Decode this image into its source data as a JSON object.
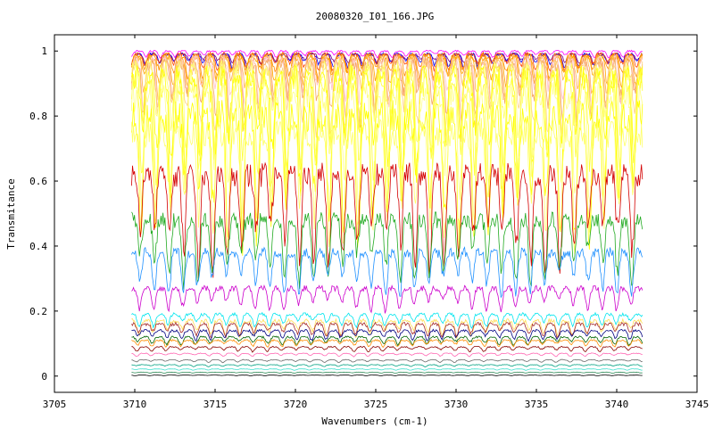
{
  "chart_data": {
    "type": "line",
    "title": "20080320_I01_166.JPG",
    "xlabel": "Wavenumbers (cm-1)",
    "ylabel": "Transmitance",
    "xlim": [
      3705,
      3745
    ],
    "ylim": [
      -0.05,
      1.05
    ],
    "x_ticks": [
      "3705",
      "3710",
      "3715",
      "3720",
      "3725",
      "3730",
      "3735",
      "3740",
      "3745"
    ],
    "y_ticks": [
      "0",
      "0.2",
      "0.4",
      "0.6",
      "0.8",
      "1"
    ],
    "x_range_data": [
      3709.8,
      3741.6
    ],
    "line_period_cm1": 0.9,
    "grid": false,
    "legend": "none",
    "series": [
      {
        "color": "#ff00ff",
        "baseline": 1.0,
        "amplitude": 0.02
      },
      {
        "color": "#800080",
        "baseline": 0.99,
        "amplitude": 0.03
      },
      {
        "color": "#0000ff",
        "baseline": 0.99,
        "amplitude": 0.04
      },
      {
        "color": "#ff4500",
        "baseline": 0.99,
        "amplitude": 0.05
      },
      {
        "color": "#ff8c00",
        "baseline": 0.985,
        "amplitude": 0.07
      },
      {
        "color": "#ffa500",
        "baseline": 0.98,
        "amplitude": 0.09
      },
      {
        "color": "#ffb347",
        "baseline": 0.975,
        "amplitude": 0.12
      },
      {
        "color": "#ffc0cb",
        "baseline": 0.97,
        "amplitude": 0.15
      },
      {
        "color": "#f4a460",
        "baseline": 0.96,
        "amplitude": 0.18
      },
      {
        "color": "#ffd27f",
        "baseline": 0.95,
        "amplitude": 0.22
      },
      {
        "color": "#ffff66",
        "baseline": 0.94,
        "amplitude": 0.26
      },
      {
        "color": "#ffff00",
        "baseline": 0.92,
        "amplitude": 0.3
      },
      {
        "color": "#ffff33",
        "baseline": 0.9,
        "amplitude": 0.35
      },
      {
        "color": "#ffff80",
        "baseline": 0.86,
        "amplitude": 0.38
      },
      {
        "color": "#ffff00",
        "baseline": 0.8,
        "amplitude": 0.4
      },
      {
        "color": "#ffff66",
        "baseline": 0.75,
        "amplitude": 0.35
      },
      {
        "color": "#d40000",
        "baseline": 0.62,
        "amplitude": 0.3
      },
      {
        "color": "#22aa22",
        "baseline": 0.48,
        "amplitude": 0.2
      },
      {
        "color": "#1e90ff",
        "baseline": 0.38,
        "amplitude": 0.13
      },
      {
        "color": "#cc00cc",
        "baseline": 0.27,
        "amplitude": 0.07
      },
      {
        "color": "#00e5ee",
        "baseline": 0.19,
        "amplitude": 0.04
      },
      {
        "color": "#ffdd55",
        "baseline": 0.17,
        "amplitude": 0.05
      },
      {
        "color": "#a52a2a",
        "baseline": 0.16,
        "amplitude": 0.04
      },
      {
        "color": "#000080",
        "baseline": 0.14,
        "amplitude": 0.03
      },
      {
        "color": "#006400",
        "baseline": 0.12,
        "amplitude": 0.025
      },
      {
        "color": "#ff8c00",
        "baseline": 0.11,
        "amplitude": 0.02
      },
      {
        "color": "#8b0000",
        "baseline": 0.09,
        "amplitude": 0.015
      },
      {
        "color": "#ff69b4",
        "baseline": 0.07,
        "amplitude": 0.01
      },
      {
        "color": "#696969",
        "baseline": 0.05,
        "amplitude": 0.008
      },
      {
        "color": "#00a080",
        "baseline": 0.035,
        "amplitude": 0.006
      },
      {
        "color": "#40e0d0",
        "baseline": 0.022,
        "amplitude": 0.004
      },
      {
        "color": "#2e8b57",
        "baseline": 0.012,
        "amplitude": 0.003
      },
      {
        "color": "#000000",
        "baseline": 0.003,
        "amplitude": 0.002
      }
    ]
  }
}
